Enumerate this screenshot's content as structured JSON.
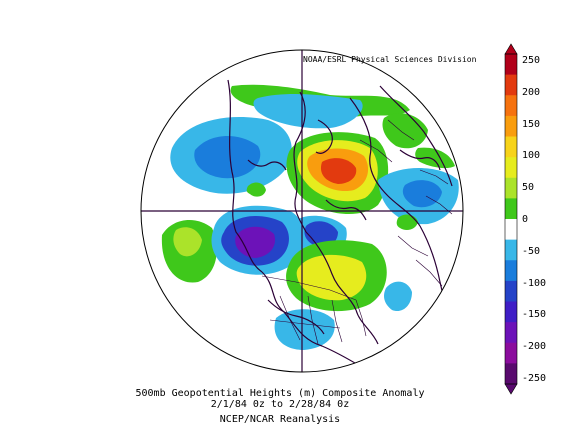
{
  "credit": "NOAA/ESRL Physical Sciences Division",
  "caption": {
    "line1": "500mb Geopotential Heights (m)   Composite Anomaly",
    "line2": "2/1/84 0z  to 2/28/84 0z",
    "line3": "NCEP/NCAR Reanalysis"
  },
  "colorbar": {
    "labels": [
      "250",
      "200",
      "150",
      "100",
      "50",
      "0",
      "-50",
      "-100",
      "-150",
      "-200",
      "-250"
    ],
    "colors": [
      "#b1001a",
      "#e23a0f",
      "#f6720f",
      "#f99d0e",
      "#f7d31a",
      "#e6ec1e",
      "#abe32a",
      "#3fc81b",
      "#ffffff",
      "#38b7e8",
      "#1a7ddc",
      "#2543c8",
      "#3f1ec6",
      "#6c12b8",
      "#8b0c9d",
      "#590a6e"
    ]
  }
}
